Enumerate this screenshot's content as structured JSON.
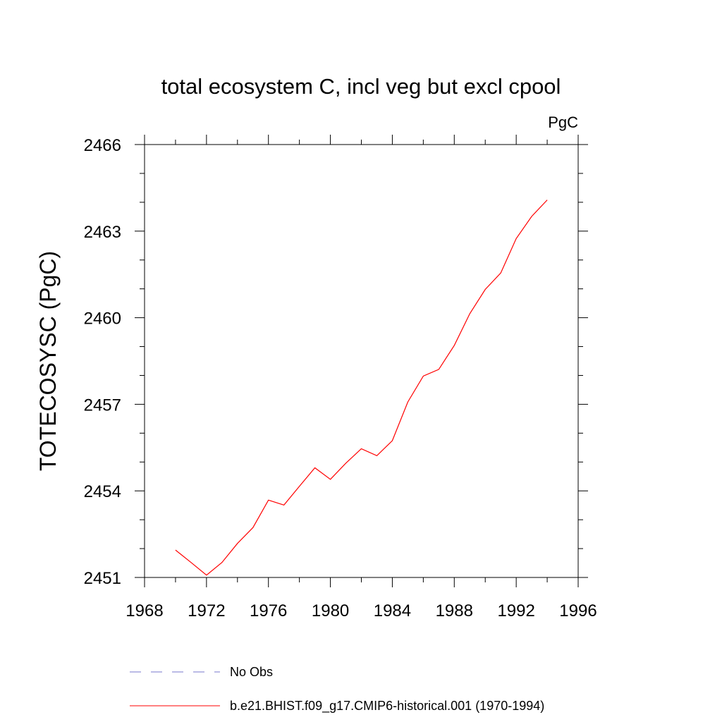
{
  "chart_data": {
    "type": "line",
    "title": "total ecosystem C, incl veg but excl cpool",
    "units": "PgC",
    "xlabel": "",
    "ylabel": "TOTECOSYSC  (PgC)",
    "xlim": [
      1968,
      1996
    ],
    "ylim": [
      2451,
      2466
    ],
    "x_ticks": [
      1968,
      1972,
      1976,
      1980,
      1984,
      1988,
      1992,
      1996
    ],
    "y_ticks": [
      2451,
      2454,
      2457,
      2460,
      2463,
      2466
    ],
    "grid": false,
    "legend_position": "bottom",
    "series": [
      {
        "name": "No Obs",
        "color": "#7777cc",
        "style": "dashed",
        "x": [],
        "values": []
      },
      {
        "name": "b.e21.BHIST.f09_g17.CMIP6-historical.001 (1970-1994)",
        "color": "#ff0000",
        "style": "solid",
        "x": [
          1970,
          1971,
          1972,
          1973,
          1974,
          1975,
          1976,
          1977,
          1978,
          1979,
          1980,
          1981,
          1982,
          1983,
          1984,
          1985,
          1986,
          1987,
          1988,
          1989,
          1990,
          1991,
          1992,
          1993,
          1994
        ],
        "values": [
          2451.95,
          2451.52,
          2451.08,
          2451.52,
          2452.18,
          2452.73,
          2453.68,
          2453.51,
          2454.16,
          2454.8,
          2454.4,
          2454.96,
          2455.46,
          2455.22,
          2455.74,
          2457.08,
          2457.98,
          2458.21,
          2459.04,
          2460.14,
          2460.98,
          2461.55,
          2462.74,
          2463.51,
          2464.08
        ]
      }
    ]
  }
}
